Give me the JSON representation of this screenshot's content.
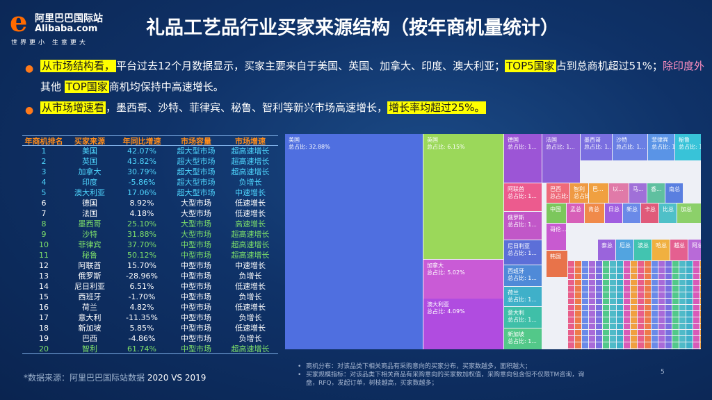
{
  "logo": {
    "mark": "e",
    "cn": "阿里巴巴国际站",
    "en": "Alibaba.com",
    "slogan": "世界更小 生意更大"
  },
  "title": "礼品工艺品行业买家来源结构（按年商机量统计）",
  "bullets": [
    {
      "parts": [
        {
          "t": "从市场结构看，",
          "hl": true
        },
        {
          "t": "平台过去12个月数据显示，买家主要来自于美国、英国、加拿大、印度、澳大利亚；"
        },
        {
          "t": "TOP5国家",
          "hl": true
        },
        {
          "t": "占到总商机超过51%；"
        },
        {
          "t": "除印度外",
          "pink": true
        },
        {
          "t": "其他 "
        },
        {
          "t": "TOP国家",
          "hl": true
        },
        {
          "t": "商机均保持中高速增长。"
        }
      ]
    },
    {
      "parts": [
        {
          "t": "从市场增速看",
          "hl": true
        },
        {
          "t": "，墨西哥、沙特、菲律宾、秘鲁、智利等新兴市场高速增长，"
        },
        {
          "t": "增长率均超过25%。",
          "hl": true
        }
      ]
    }
  ],
  "table": {
    "headers": [
      "年商机排名",
      "买家来源",
      "年同比增速",
      "市场容量",
      "市场增速"
    ],
    "rows": [
      {
        "cells": [
          "1",
          "美国",
          "42.07%",
          "超大型市场",
          "超高速增长"
        ],
        "style": "hi"
      },
      {
        "cells": [
          "2",
          "英国",
          "43.82%",
          "超大型市场",
          "超高速增长"
        ],
        "style": "hi"
      },
      {
        "cells": [
          "3",
          "加拿大",
          "30.79%",
          "超大型市场",
          "超高速增长"
        ],
        "style": "hi"
      },
      {
        "cells": [
          "4",
          "印度",
          "-5.86%",
          "超大型市场",
          "负增长"
        ],
        "style": "hi"
      },
      {
        "cells": [
          "5",
          "澳大利亚",
          "17.06%",
          "超大型市场",
          "中速增长"
        ],
        "style": "hi"
      },
      {
        "cells": [
          "6",
          "德国",
          "8.92%",
          "大型市场",
          "低速增长"
        ],
        "style": "white"
      },
      {
        "cells": [
          "7",
          "法国",
          "4.18%",
          "大型市场",
          "低速增长"
        ],
        "style": "white"
      },
      {
        "cells": [
          "8",
          "墨西哥",
          "25.10%",
          "大型市场",
          "高速增长"
        ],
        "style": "green"
      },
      {
        "cells": [
          "9",
          "沙特",
          "31.88%",
          "大型市场",
          "超高速增长"
        ],
        "style": "green"
      },
      {
        "cells": [
          "10",
          "菲律宾",
          "37.70%",
          "中型市场",
          "超高速增长"
        ],
        "style": "green"
      },
      {
        "cells": [
          "11",
          "秘鲁",
          "50.12%",
          "中型市场",
          "超高速增长"
        ],
        "style": "green"
      },
      {
        "cells": [
          "12",
          "阿联酋",
          "15.70%",
          "中型市场",
          "中速增长"
        ],
        "style": "white"
      },
      {
        "cells": [
          "13",
          "俄罗斯",
          "-28.96%",
          "中型市场",
          "负增长"
        ],
        "style": "white"
      },
      {
        "cells": [
          "14",
          "尼日利亚",
          "6.51%",
          "中型市场",
          "低速增长"
        ],
        "style": "white"
      },
      {
        "cells": [
          "15",
          "西班牙",
          "-1.70%",
          "中型市场",
          "负增长"
        ],
        "style": "white"
      },
      {
        "cells": [
          "16",
          "荷兰",
          "4.82%",
          "中型市场",
          "低速增长"
        ],
        "style": "white"
      },
      {
        "cells": [
          "17",
          "意大利",
          "-11.35%",
          "中型市场",
          "负增长"
        ],
        "style": "white"
      },
      {
        "cells": [
          "18",
          "新加坡",
          "5.85%",
          "中型市场",
          "低速增长"
        ],
        "style": "white"
      },
      {
        "cells": [
          "19",
          "巴西",
          "-4.86%",
          "中型市场",
          "负增长"
        ],
        "style": "white"
      },
      {
        "cells": [
          "20",
          "智利",
          "61.74%",
          "中型市场",
          "超高速增长"
        ],
        "style": "green"
      }
    ]
  },
  "chart_data": {
    "type": "treemap",
    "tiles": [
      {
        "name": "美国",
        "label": "总占比: 32.88%",
        "color": "#4f6fe0"
      },
      {
        "name": "英国",
        "label": "总占比: 6.15%",
        "color": "#9bd85a"
      },
      {
        "name": "加拿大",
        "label": "总占比: 5.02%",
        "color": "#c95bd6"
      },
      {
        "name": "印度",
        "label": "总占比: 4.11%",
        "color": "#ee8155"
      },
      {
        "name": "澳大利亚",
        "label": "总占比: 4.09%",
        "color": "#b04ce0"
      },
      {
        "name": "德国",
        "label": "总占比: 1...",
        "color": "#9c55d6"
      },
      {
        "name": "法国",
        "label": "总占比: 1...",
        "color": "#8d60d8"
      },
      {
        "name": "墨西哥",
        "label": "总占比: 1...",
        "color": "#7a6ee0"
      },
      {
        "name": "沙特",
        "label": "总占比: 1...",
        "color": "#6a7fe4"
      },
      {
        "name": "菲律宾",
        "label": "总占比: 1...",
        "color": "#5a94e6"
      },
      {
        "name": "秘鲁",
        "label": "总占比: 1...",
        "color": "#38c3d8"
      },
      {
        "name": "阿联酋",
        "label": "总占比: 1...",
        "color": "#ec5b8e"
      },
      {
        "name": "俄罗斯",
        "label": "总占比: 1...",
        "color": "#c157c8"
      },
      {
        "name": "尼日利亚",
        "label": "总占比: 1...",
        "color": "#5c6fd8"
      },
      {
        "name": "西班牙",
        "label": "总占比: 1...",
        "color": "#4f8ad8"
      },
      {
        "name": "荷兰",
        "label": "总占比: 1...",
        "color": "#3fb0c9"
      },
      {
        "name": "意大利",
        "label": "总占比: 1...",
        "color": "#3fbfa8"
      },
      {
        "name": "新加坡",
        "label": "总占比: 1...",
        "color": "#53c889"
      },
      {
        "name": "巴西",
        "label": "总占比: 1...",
        "color": "#ee6a7a"
      },
      {
        "name": "智利",
        "label": "总占比: 1...",
        "color": "#ef9a43"
      },
      {
        "name": "巴...",
        "label": "",
        "color": "#f0a040"
      },
      {
        "name": "以...",
        "label": "",
        "color": "#e07aa8"
      },
      {
        "name": "马...",
        "label": "",
        "color": "#a070d8"
      },
      {
        "name": "香...",
        "label": "",
        "color": "#60c0a0"
      },
      {
        "name": "南总",
        "label": "",
        "color": "#5a7fe0"
      },
      {
        "name": "中国",
        "label": "",
        "color": "#7cc75c"
      },
      {
        "name": "孟总",
        "label": "",
        "color": "#d75fb8"
      },
      {
        "name": "肯总",
        "label": "",
        "color": "#f08a4a"
      },
      {
        "name": "日总",
        "label": "",
        "color": "#a05ee0"
      },
      {
        "name": "新总",
        "label": "",
        "color": "#6a8ae8"
      },
      {
        "name": "卡总",
        "label": "",
        "color": "#e05a7a"
      },
      {
        "name": "比总",
        "label": "",
        "color": "#4fc0c8"
      },
      {
        "name": "加总",
        "label": "",
        "color": "#8cd06a"
      },
      {
        "name": "哥伦...",
        "label": "",
        "color": "#c85ad0"
      },
      {
        "name": "韩国",
        "label": "",
        "color": "#e8734a"
      },
      {
        "name": "泰总",
        "label": "",
        "color": "#9a64dc"
      },
      {
        "name": "厄总",
        "label": "",
        "color": "#52a4e0"
      },
      {
        "name": "波总",
        "label": "",
        "color": "#42c4b0"
      },
      {
        "name": "哈总",
        "label": "",
        "color": "#f0b040"
      },
      {
        "name": "越总",
        "label": "",
        "color": "#e46090"
      },
      {
        "name": "阿总",
        "label": "",
        "color": "#b86ad8"
      }
    ]
  },
  "source": {
    "prefix": "*数据来源：阿里巴巴国际站数据",
    "range": "2020 VS 2019"
  },
  "notes": [
    "商机分布：对该品类下相关商品有采购意向的买家分布，买家数越多，面积越大；",
    "买家规模指标：对该品类下相关商品有采购意向的买家数加权值，采购意向包含但不仅限TM咨询，询盘，RFQ，发起订单，树枝越高，买家数越多；"
  ],
  "page_number": "5"
}
